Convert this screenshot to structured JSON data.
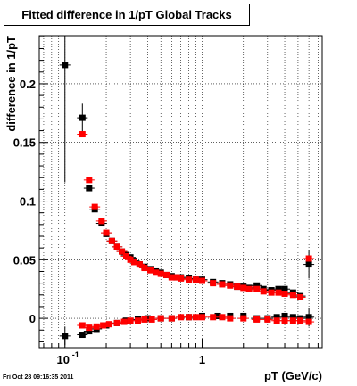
{
  "title": "Fitted difference in 1/pT  Global Tracks",
  "timestamp": "Fri Oct 28 09:16:35 2011",
  "chart_data": {
    "type": "scatter",
    "title": "Fitted difference in 1/pT  Global Tracks",
    "xlabel": "pT (GeV/c)",
    "ylabel": "difference in 1/pT",
    "xscale": "log",
    "xlim": [
      0.065,
      7.5
    ],
    "ylim": [
      -0.025,
      0.241
    ],
    "x_ticklabels": [
      {
        "x": 0.1,
        "base": "10",
        "exp": "-1"
      },
      {
        "x": 1,
        "label": "1"
      }
    ],
    "y_ticks": [
      0,
      0.05,
      0.1,
      0.15,
      0.2
    ],
    "y_ticklabels": [
      "0",
      "0.05",
      "0.1",
      "0.15",
      "0.2"
    ],
    "grid": true,
    "colors": {
      "black_series": "#000000",
      "red_series": "#ff0000"
    },
    "series": [
      {
        "marker": "square",
        "color": "#000000",
        "points": [
          [
            0.1,
            0.216
          ],
          [
            0.134,
            0.171
          ],
          [
            0.15,
            0.111
          ],
          [
            0.165,
            0.093
          ],
          [
            0.185,
            0.081
          ],
          [
            0.2,
            0.072
          ],
          [
            0.22,
            0.066
          ],
          [
            0.24,
            0.061
          ],
          [
            0.26,
            0.057
          ],
          [
            0.28,
            0.054
          ],
          [
            0.3,
            0.052
          ],
          [
            0.32,
            0.049
          ],
          [
            0.35,
            0.046
          ],
          [
            0.38,
            0.044
          ],
          [
            0.42,
            0.042
          ],
          [
            0.46,
            0.04
          ],
          [
            0.5,
            0.039
          ],
          [
            0.55,
            0.037
          ],
          [
            0.6,
            0.036
          ],
          [
            0.65,
            0.035
          ],
          [
            0.7,
            0.035
          ],
          [
            0.8,
            0.034
          ],
          [
            0.9,
            0.033
          ],
          [
            1.0,
            0.033
          ],
          [
            1.2,
            0.031
          ],
          [
            1.4,
            0.03
          ],
          [
            1.6,
            0.029
          ],
          [
            1.8,
            0.027
          ],
          [
            2.0,
            0.027
          ],
          [
            2.2,
            0.026
          ],
          [
            2.5,
            0.028
          ],
          [
            2.8,
            0.025
          ],
          [
            3.2,
            0.024
          ],
          [
            3.6,
            0.025
          ],
          [
            4.0,
            0.025
          ],
          [
            4.6,
            0.022
          ],
          [
            5.2,
            0.019
          ],
          [
            6.0,
            0.046
          ],
          [
            0.1,
            -0.015
          ],
          [
            0.134,
            -0.014
          ],
          [
            0.15,
            -0.011
          ],
          [
            0.17,
            -0.009
          ],
          [
            0.2,
            -0.006
          ],
          [
            0.24,
            -0.004
          ],
          [
            0.28,
            -0.002
          ],
          [
            0.34,
            -0.001
          ],
          [
            0.4,
            0.0
          ],
          [
            0.5,
            0.0
          ],
          [
            0.6,
            0.0
          ],
          [
            0.8,
            0.001
          ],
          [
            1.0,
            0.002
          ],
          [
            1.3,
            0.002
          ],
          [
            1.6,
            0.002
          ],
          [
            2.0,
            0.002
          ],
          [
            2.5,
            0.0
          ],
          [
            3.0,
            0.0
          ],
          [
            3.5,
            0.001
          ],
          [
            4.0,
            0.002
          ],
          [
            4.6,
            0.001
          ],
          [
            5.2,
            0.0
          ],
          [
            6.0,
            0.001
          ]
        ]
      },
      {
        "marker": "square",
        "color": "#ff0000",
        "points": [
          [
            0.134,
            0.157
          ],
          [
            0.15,
            0.118
          ],
          [
            0.165,
            0.095
          ],
          [
            0.185,
            0.083
          ],
          [
            0.2,
            0.073
          ],
          [
            0.22,
            0.066
          ],
          [
            0.24,
            0.061
          ],
          [
            0.26,
            0.057
          ],
          [
            0.28,
            0.053
          ],
          [
            0.3,
            0.05
          ],
          [
            0.32,
            0.048
          ],
          [
            0.35,
            0.046
          ],
          [
            0.38,
            0.043
          ],
          [
            0.42,
            0.041
          ],
          [
            0.46,
            0.039
          ],
          [
            0.5,
            0.038
          ],
          [
            0.55,
            0.037
          ],
          [
            0.6,
            0.035
          ],
          [
            0.65,
            0.035
          ],
          [
            0.7,
            0.034
          ],
          [
            0.8,
            0.033
          ],
          [
            0.9,
            0.033
          ],
          [
            1.0,
            0.032
          ],
          [
            1.2,
            0.03
          ],
          [
            1.4,
            0.029
          ],
          [
            1.6,
            0.028
          ],
          [
            1.8,
            0.027
          ],
          [
            2.0,
            0.026
          ],
          [
            2.2,
            0.025
          ],
          [
            2.5,
            0.025
          ],
          [
            2.8,
            0.023
          ],
          [
            3.2,
            0.022
          ],
          [
            3.6,
            0.022
          ],
          [
            4.0,
            0.021
          ],
          [
            4.6,
            0.02
          ],
          [
            5.2,
            0.018
          ],
          [
            6.0,
            0.051
          ],
          [
            0.134,
            -0.006
          ],
          [
            0.15,
            -0.008
          ],
          [
            0.17,
            -0.007
          ],
          [
            0.19,
            -0.006
          ],
          [
            0.21,
            -0.005
          ],
          [
            0.24,
            -0.004
          ],
          [
            0.27,
            -0.003
          ],
          [
            0.3,
            -0.002
          ],
          [
            0.34,
            -0.002
          ],
          [
            0.38,
            -0.001
          ],
          [
            0.43,
            -0.001
          ],
          [
            0.5,
            0.0
          ],
          [
            0.6,
            0.0
          ],
          [
            0.7,
            0.001
          ],
          [
            0.8,
            0.001
          ],
          [
            0.9,
            0.001
          ],
          [
            1.0,
            0.001
          ],
          [
            1.2,
            0.001
          ],
          [
            1.4,
            0.001
          ],
          [
            1.6,
            0.0
          ],
          [
            2.0,
            0.0
          ],
          [
            2.5,
            -0.001
          ],
          [
            3.0,
            -0.001
          ],
          [
            3.5,
            -0.002
          ],
          [
            4.0,
            -0.002
          ],
          [
            4.6,
            -0.002
          ],
          [
            5.2,
            -0.002
          ],
          [
            6.0,
            -0.003
          ]
        ]
      }
    ]
  }
}
